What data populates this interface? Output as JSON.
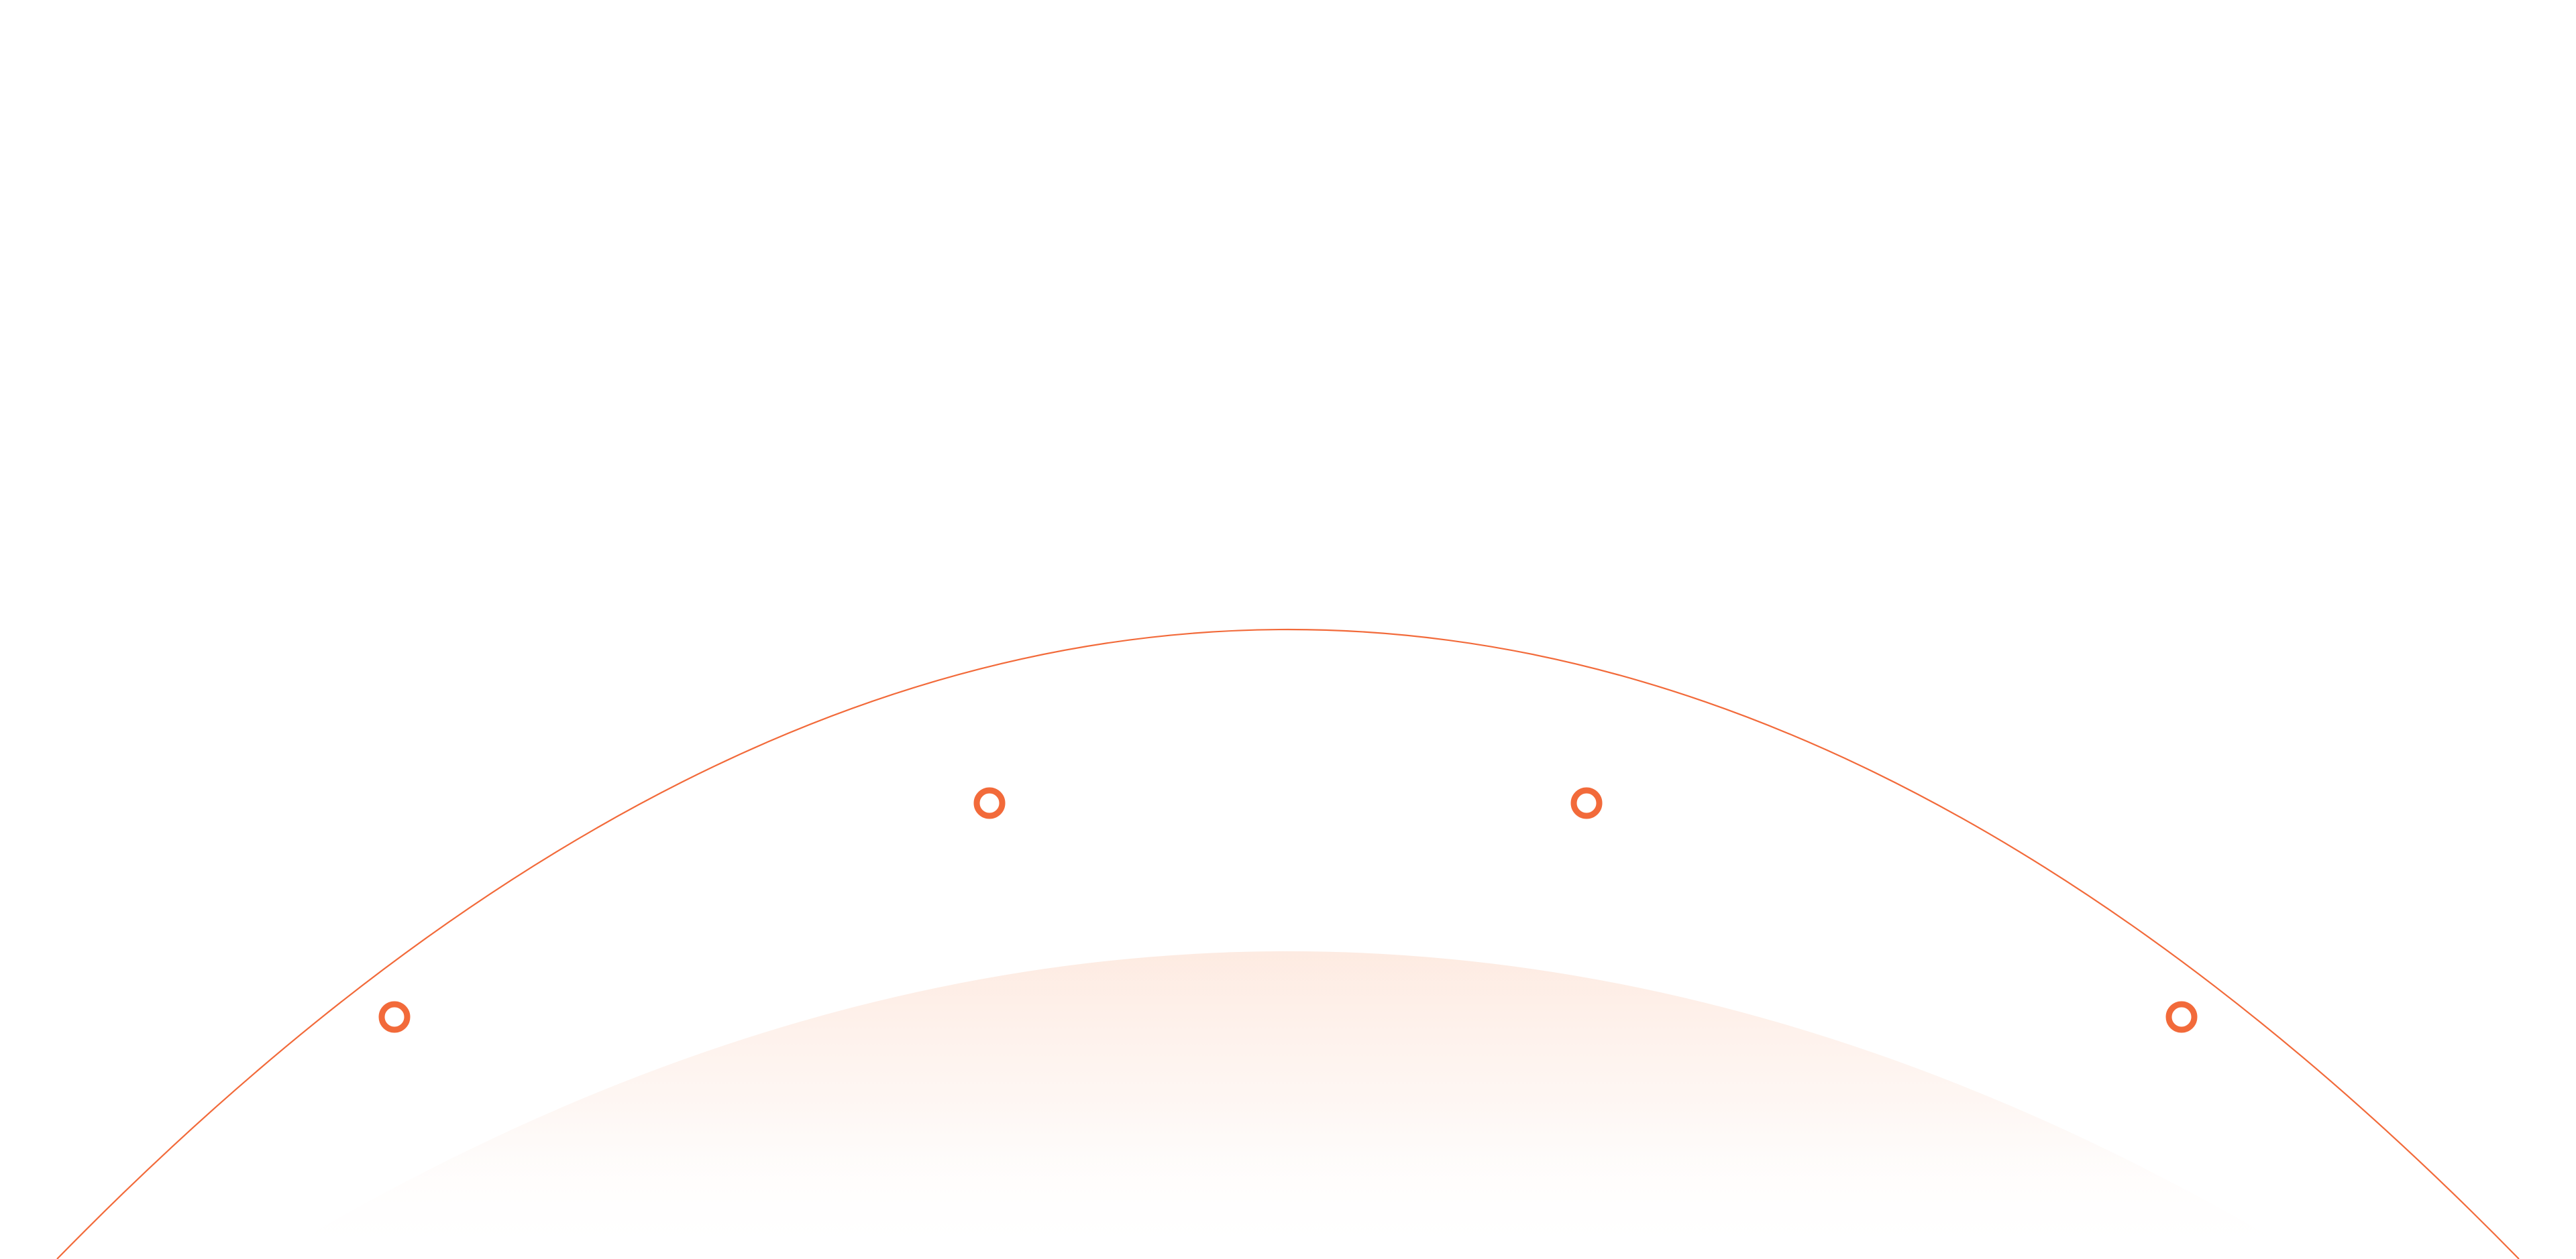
{
  "theme": {
    "background": "#ffffff",
    "accent": "#f26a3a",
    "glow": "#fde7dc"
  },
  "decoration": {
    "outer_arc_nodes": 4,
    "inner_glow": true
  }
}
